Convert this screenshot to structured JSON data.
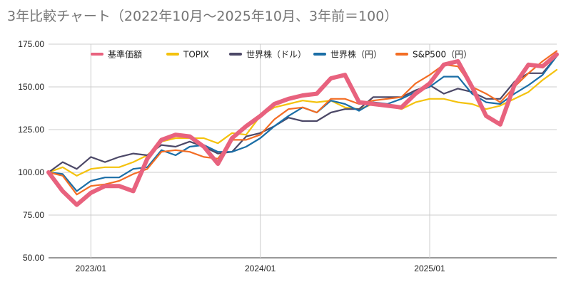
{
  "chart_data": {
    "type": "line",
    "title": "3年比較チャート（2022年10月～2025年10月、3年前＝100）",
    "xlabel": "",
    "ylabel": "",
    "ylim": [
      50,
      175
    ],
    "yticks": [
      "50.00",
      "75.00",
      "100.00",
      "125.00",
      "150.00",
      "175.00"
    ],
    "ytick_values": [
      50,
      75,
      100,
      125,
      150,
      175
    ],
    "xticks": [
      {
        "label": "2023/01",
        "index": 3
      },
      {
        "label": "2024/01",
        "index": 15
      },
      {
        "label": "2025/01",
        "index": 27
      }
    ],
    "x": [
      "2022/10",
      "2022/11",
      "2022/12",
      "2023/01",
      "2023/02",
      "2023/03",
      "2023/04",
      "2023/05",
      "2023/06",
      "2023/07",
      "2023/08",
      "2023/09",
      "2023/10",
      "2023/11",
      "2023/12",
      "2024/01",
      "2024/02",
      "2024/03",
      "2024/04",
      "2024/05",
      "2024/06",
      "2024/07",
      "2024/08",
      "2024/09",
      "2024/10",
      "2024/11",
      "2024/12",
      "2025/01",
      "2025/02",
      "2025/03",
      "2025/04",
      "2025/05",
      "2025/06",
      "2025/07",
      "2025/08",
      "2025/09",
      "2025/10"
    ],
    "series": [
      {
        "name": "基準価額",
        "color": "#e8627e",
        "values": [
          100,
          89,
          81,
          88,
          92,
          92,
          89,
          108,
          119,
          122,
          121,
          115,
          105,
          120,
          127,
          133,
          140,
          143,
          145,
          146,
          155,
          157,
          141,
          140,
          139,
          138,
          146,
          152,
          163,
          165,
          150,
          133,
          128,
          151,
          163,
          162,
          169
        ]
      },
      {
        "name": "TOPIX",
        "color": "#f4c20d",
        "values": [
          100,
          103,
          98,
          102,
          103,
          103,
          106,
          110,
          118,
          120,
          120,
          120,
          117,
          123,
          122,
          133,
          138,
          140,
          142,
          141,
          142,
          138,
          137,
          140,
          139,
          137,
          141,
          143,
          143,
          141,
          140,
          137,
          139,
          143,
          147,
          154,
          160
        ]
      },
      {
        "name": "世界株（ドル）",
        "color": "#4c4867",
        "values": [
          100,
          106,
          102,
          109,
          106,
          109,
          111,
          110,
          116,
          115,
          118,
          115,
          111,
          112,
          121,
          123,
          127,
          132,
          130,
          130,
          135,
          137,
          137,
          144,
          144,
          144,
          148,
          151,
          146,
          149,
          147,
          143,
          143,
          153,
          158,
          158,
          168
        ]
      },
      {
        "name": "世界株（円）",
        "color": "#1b6ea6",
        "values": [
          100,
          99,
          89,
          95,
          97,
          97,
          102,
          103,
          113,
          110,
          115,
          116,
          112,
          112,
          115,
          120,
          127,
          133,
          138,
          135,
          142,
          140,
          136,
          141,
          140,
          143,
          147,
          150,
          156,
          156,
          146,
          141,
          140,
          146,
          151,
          157,
          168
        ]
      },
      {
        "name": "S&P500（円）",
        "color": "#f36d24",
        "values": [
          100,
          98,
          87,
          92,
          93,
          95,
          99,
          102,
          112,
          113,
          112,
          109,
          108,
          119,
          119,
          122,
          131,
          137,
          138,
          135,
          143,
          143,
          140,
          142,
          143,
          144,
          152,
          157,
          163,
          162,
          150,
          146,
          141,
          150,
          158,
          165,
          171
        ]
      }
    ],
    "legend": "top"
  }
}
